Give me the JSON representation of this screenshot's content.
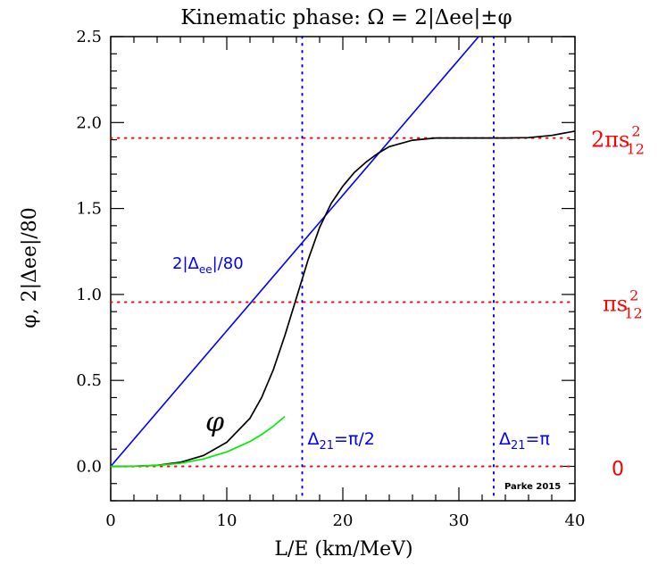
{
  "chart_data": {
    "type": "line",
    "title": "Kinematic phase: Ω = 2|Δee|±φ",
    "xlabel": "L/E (km/MeV)",
    "ylabel": "φ, 2|Δee|/80",
    "xlim": [
      0,
      40
    ],
    "ylim": [
      -0.2,
      2.5
    ],
    "x_ticks": [
      0,
      10,
      20,
      30,
      40
    ],
    "x_tick_labels": [
      "0",
      "10",
      "20",
      "30",
      "40"
    ],
    "y_ticks": [
      0.0,
      0.5,
      1.0,
      1.5,
      2.0,
      2.5
    ],
    "y_tick_labels": [
      "0.0",
      "0.5",
      "1.0",
      "1.5",
      "2.0",
      "2.5"
    ],
    "grid": false,
    "series": [
      {
        "name": "2|Δee|/80",
        "color": "#0000ff",
        "x": [
          0,
          31.7
        ],
        "y": [
          0.0,
          2.5
        ]
      },
      {
        "name": "φ",
        "color": "#000000",
        "x": [
          0,
          2,
          4,
          6,
          8,
          10,
          12,
          13,
          14,
          15,
          16,
          17,
          18,
          19,
          20,
          21,
          22,
          23,
          24,
          26,
          28,
          30,
          32,
          34,
          36,
          38,
          40
        ],
        "y": [
          0.0,
          0.001,
          0.006,
          0.024,
          0.063,
          0.14,
          0.28,
          0.4,
          0.56,
          0.76,
          0.98,
          1.2,
          1.39,
          1.53,
          1.63,
          1.71,
          1.77,
          1.82,
          1.86,
          1.897,
          1.91,
          1.91,
          1.91,
          1.91,
          1.912,
          1.925,
          1.95
        ]
      },
      {
        "name": "",
        "color": "#00ee00",
        "x": [
          0,
          2,
          4,
          6,
          8,
          10,
          12,
          13,
          14,
          15
        ],
        "y": [
          0.0,
          0.001,
          0.005,
          0.018,
          0.043,
          0.084,
          0.145,
          0.185,
          0.233,
          0.29
        ]
      }
    ],
    "hlines": [
      {
        "y": 0.0,
        "color": "#ff0000",
        "label": "0"
      },
      {
        "y": 0.955,
        "color": "#ff0000",
        "label_main": "πs",
        "label_sup": "2",
        "label_sub": "12"
      },
      {
        "y": 1.91,
        "color": "#ff0000",
        "label_main": "2πs",
        "label_sup": "2",
        "label_sub": "12"
      }
    ],
    "vlines": [
      {
        "x": 16.5,
        "color": "#0000ff",
        "label_main": "Δ",
        "label_sub": "21",
        "label_rest": "=π/2"
      },
      {
        "x": 33.0,
        "color": "#0000ff",
        "label_main": "Δ",
        "label_sub": "21",
        "label_rest": "=π"
      }
    ],
    "annotations": {
      "blue_line_label": {
        "main": "2|Δ",
        "sub": "ee",
        "rest": "|/80",
        "color": "#0000ff"
      },
      "phi_label": "φ",
      "credit": "Parke 2015"
    }
  }
}
